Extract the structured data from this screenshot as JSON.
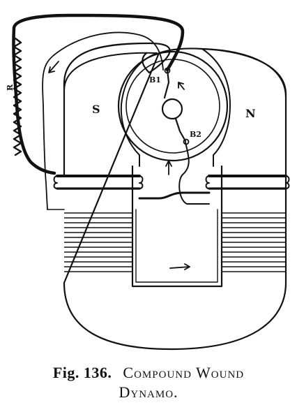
{
  "diagram": {
    "labels": {
      "south_pole": "S",
      "north_pole": "N",
      "brush_1": "B1",
      "brush_2": "B2",
      "resistance": "R"
    }
  },
  "caption": {
    "figure_number": "Fig. 136.",
    "title_line1": "Compound Wound",
    "title_line2": "Dynamo."
  }
}
